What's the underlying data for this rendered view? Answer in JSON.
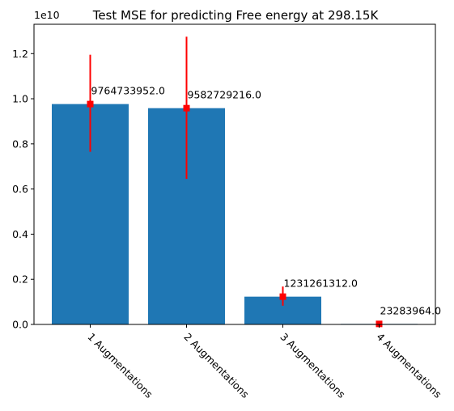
{
  "chart_data": {
    "type": "bar",
    "title": "Test MSE for predicting Free energy at 298.15K",
    "xlabel": "",
    "ylabel": "",
    "categories": [
      "1 Augmentations",
      "2 Augmentations",
      "3 Augmentations",
      "4 Augmentations"
    ],
    "values": [
      9764733952.0,
      9582729216.0,
      1231261312.0,
      23283964.0
    ],
    "data_labels": [
      "9764733952.0",
      "9582729216.0",
      "1231261312.0",
      "23283964.0"
    ],
    "error_bars": [
      {
        "low": 7650000000,
        "high": 11950000000
      },
      {
        "low": 6450000000,
        "high": 12750000000
      },
      {
        "low": 830000000,
        "high": 1680000000
      },
      {
        "low": 0,
        "high": 60000000
      }
    ],
    "ylim": [
      0,
      13300000000
    ],
    "y_ticks": [
      0,
      2000000000,
      4000000000,
      6000000000,
      8000000000,
      10000000000,
      12000000000
    ],
    "y_tick_labels": [
      "0.0",
      "0.2",
      "0.4",
      "0.6",
      "0.8",
      "1.0",
      "1.2"
    ],
    "y_offset_label": "1e10",
    "grid": false,
    "colors": {
      "bar": "#1f77b4",
      "error": "#ff0000",
      "axis": "#000000"
    }
  }
}
